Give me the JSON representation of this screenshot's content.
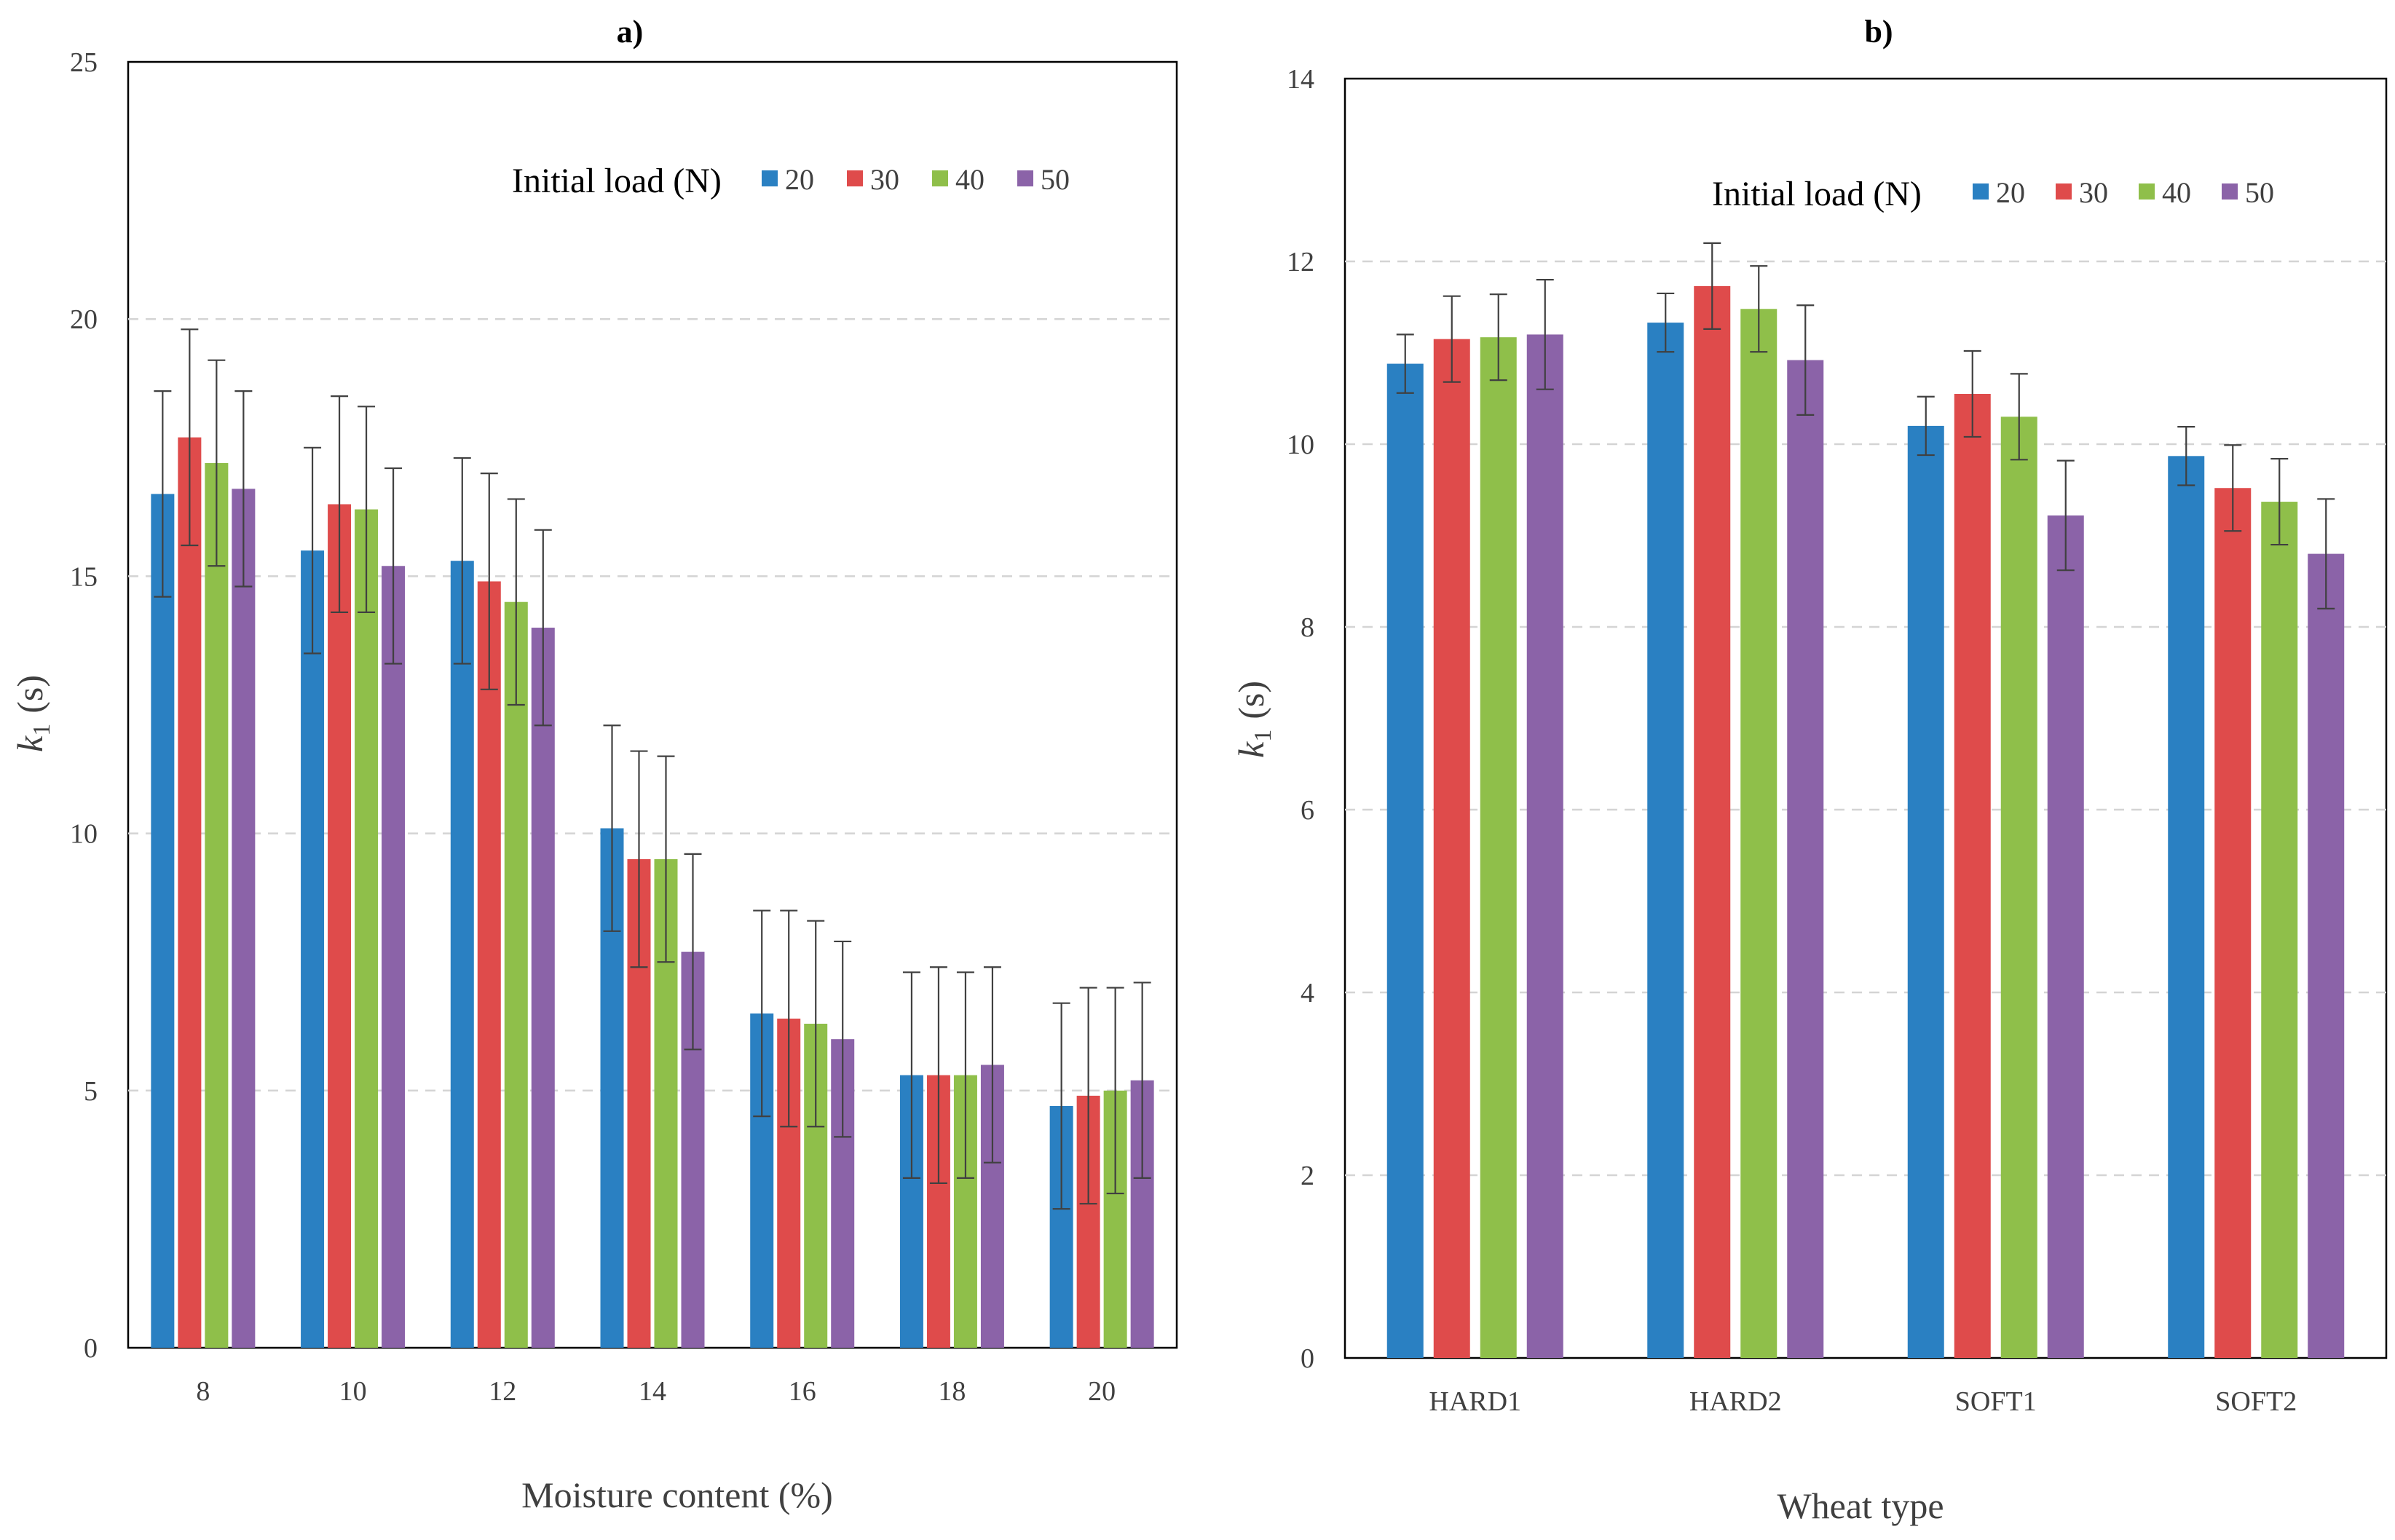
{
  "figure": {
    "panels": [
      "a)",
      "b)"
    ]
  },
  "colors": {
    "20": "#2a80c2",
    "30": "#df4b4b",
    "40": "#8fbf4a",
    "50": "#8b63a8",
    "error_bar": "#404040",
    "grid": "#d4d4d4",
    "axis": "#000000"
  },
  "chart_data": [
    {
      "type": "bar",
      "title": "a)",
      "xlabel": "Moisture content (%)",
      "ylabel_main": "k",
      "ylabel_sub": "1",
      "ylabel_unit": "(s)",
      "ylim": [
        0,
        25
      ],
      "yticks": [
        0,
        5,
        10,
        15,
        20,
        25
      ],
      "grid": true,
      "legend_title": "Initial load (N)",
      "legend_position": "top-right",
      "categories": [
        "8",
        "10",
        "12",
        "14",
        "16",
        "18",
        "20"
      ],
      "series": [
        {
          "name": "20",
          "values": [
            16.6,
            15.5,
            15.3,
            10.1,
            6.5,
            5.3,
            4.7
          ],
          "errors": [
            2.0,
            2.0,
            2.0,
            2.0,
            2.0,
            2.0,
            2.0
          ]
        },
        {
          "name": "30",
          "values": [
            17.7,
            16.4,
            14.9,
            9.5,
            6.4,
            5.3,
            4.9
          ],
          "errors": [
            2.1,
            2.1,
            2.1,
            2.1,
            2.1,
            2.1,
            2.1
          ]
        },
        {
          "name": "40",
          "values": [
            17.2,
            16.3,
            14.5,
            9.5,
            6.3,
            5.3,
            5.0
          ],
          "errors": [
            2.0,
            2.0,
            2.0,
            2.0,
            2.0,
            2.0,
            2.0
          ]
        },
        {
          "name": "50",
          "values": [
            16.7,
            15.2,
            14.0,
            7.7,
            6.0,
            5.5,
            5.2
          ],
          "errors": [
            1.9,
            1.9,
            1.9,
            1.9,
            1.9,
            1.9,
            1.9
          ]
        }
      ]
    },
    {
      "type": "bar",
      "title": "b)",
      "xlabel": "Wheat type",
      "ylabel_main": "k",
      "ylabel_sub": "1",
      "ylabel_unit": "(s)",
      "ylim": [
        0,
        14
      ],
      "yticks": [
        0,
        2,
        4,
        6,
        8,
        10,
        12,
        14
      ],
      "grid": true,
      "legend_title": "Initial load (N)",
      "legend_position": "top-right",
      "categories": [
        "HARD1",
        "HARD2",
        "SOFT1",
        "SOFT2"
      ],
      "series": [
        {
          "name": "20",
          "values": [
            10.88,
            11.33,
            10.2,
            9.87
          ],
          "errors": [
            0.32,
            0.32,
            0.32,
            0.32
          ]
        },
        {
          "name": "30",
          "values": [
            11.15,
            11.73,
            10.55,
            9.52
          ],
          "errors": [
            0.47,
            0.47,
            0.47,
            0.47
          ]
        },
        {
          "name": "40",
          "values": [
            11.17,
            11.48,
            10.3,
            9.37
          ],
          "errors": [
            0.47,
            0.47,
            0.47,
            0.47
          ]
        },
        {
          "name": "50",
          "values": [
            11.2,
            10.92,
            9.22,
            8.8
          ],
          "errors": [
            0.6,
            0.6,
            0.6,
            0.6
          ]
        }
      ]
    }
  ]
}
